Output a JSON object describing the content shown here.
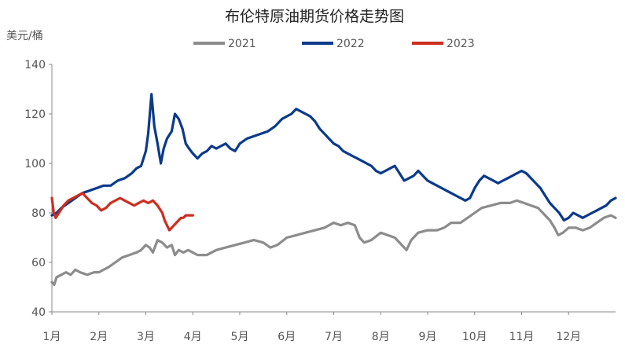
{
  "chart_data": {
    "type": "line",
    "title": "布伦特原油期货价格走势图",
    "ylabel": "美元/桶",
    "xlabel": "",
    "ylim": [
      40,
      140
    ],
    "y_ticks": [
      40,
      60,
      80,
      100,
      120,
      140
    ],
    "x_ticks": [
      "1月",
      "2月",
      "3月",
      "4月",
      "5月",
      "6月",
      "7月",
      "8月",
      "9月",
      "10月",
      "11月",
      "12月"
    ],
    "xlim_months": [
      1,
      13
    ],
    "grid": false,
    "legend_position": "top",
    "series": [
      {
        "name": "2021",
        "color": "#8c8c8c",
        "points": [
          [
            1.0,
            52
          ],
          [
            1.05,
            51
          ],
          [
            1.1,
            54
          ],
          [
            1.2,
            55
          ],
          [
            1.3,
            56
          ],
          [
            1.4,
            55
          ],
          [
            1.5,
            57
          ],
          [
            1.6,
            56
          ],
          [
            1.75,
            55
          ],
          [
            1.9,
            56
          ],
          [
            2.0,
            56
          ],
          [
            2.1,
            57
          ],
          [
            2.2,
            58
          ],
          [
            2.35,
            60
          ],
          [
            2.5,
            62
          ],
          [
            2.65,
            63
          ],
          [
            2.8,
            64
          ],
          [
            2.9,
            65
          ],
          [
            3.0,
            67
          ],
          [
            3.08,
            66
          ],
          [
            3.15,
            64
          ],
          [
            3.25,
            69
          ],
          [
            3.35,
            68
          ],
          [
            3.45,
            66
          ],
          [
            3.55,
            67
          ],
          [
            3.62,
            63
          ],
          [
            3.7,
            65
          ],
          [
            3.8,
            64
          ],
          [
            3.9,
            65
          ],
          [
            4.0,
            64
          ],
          [
            4.1,
            63
          ],
          [
            4.3,
            63
          ],
          [
            4.5,
            65
          ],
          [
            4.7,
            66
          ],
          [
            4.9,
            67
          ],
          [
            5.1,
            68
          ],
          [
            5.3,
            69
          ],
          [
            5.5,
            68
          ],
          [
            5.65,
            66
          ],
          [
            5.8,
            67
          ],
          [
            6.0,
            70
          ],
          [
            6.2,
            71
          ],
          [
            6.4,
            72
          ],
          [
            6.6,
            73
          ],
          [
            6.8,
            74
          ],
          [
            7.0,
            76
          ],
          [
            7.15,
            75
          ],
          [
            7.3,
            76
          ],
          [
            7.45,
            75
          ],
          [
            7.55,
            70
          ],
          [
            7.65,
            68
          ],
          [
            7.8,
            69
          ],
          [
            8.0,
            72
          ],
          [
            8.15,
            71
          ],
          [
            8.3,
            70
          ],
          [
            8.45,
            67
          ],
          [
            8.55,
            65
          ],
          [
            8.65,
            69
          ],
          [
            8.8,
            72
          ],
          [
            9.0,
            73
          ],
          [
            9.2,
            73
          ],
          [
            9.35,
            74
          ],
          [
            9.5,
            76
          ],
          [
            9.7,
            76
          ],
          [
            9.85,
            78
          ],
          [
            10.0,
            80
          ],
          [
            10.15,
            82
          ],
          [
            10.35,
            83
          ],
          [
            10.55,
            84
          ],
          [
            10.75,
            84
          ],
          [
            10.9,
            85
          ],
          [
            11.05,
            84
          ],
          [
            11.2,
            83
          ],
          [
            11.35,
            82
          ],
          [
            11.5,
            79
          ],
          [
            11.6,
            77
          ],
          [
            11.7,
            74
          ],
          [
            11.78,
            71
          ],
          [
            11.88,
            72
          ],
          [
            12.0,
            74
          ],
          [
            12.15,
            74
          ],
          [
            12.3,
            73
          ],
          [
            12.45,
            74
          ],
          [
            12.6,
            76
          ],
          [
            12.75,
            78
          ],
          [
            12.9,
            79
          ],
          [
            13.0,
            78
          ]
        ]
      },
      {
        "name": "2022",
        "color": "#0a3a8c",
        "points": [
          [
            1.0,
            79
          ],
          [
            1.1,
            80
          ],
          [
            1.2,
            82
          ],
          [
            1.35,
            84
          ],
          [
            1.5,
            86
          ],
          [
            1.65,
            88
          ],
          [
            1.8,
            89
          ],
          [
            1.95,
            90
          ],
          [
            2.1,
            91
          ],
          [
            2.25,
            91
          ],
          [
            2.4,
            93
          ],
          [
            2.55,
            94
          ],
          [
            2.7,
            96
          ],
          [
            2.8,
            98
          ],
          [
            2.9,
            99
          ],
          [
            3.0,
            105
          ],
          [
            3.05,
            112
          ],
          [
            3.12,
            128
          ],
          [
            3.18,
            115
          ],
          [
            3.25,
            108
          ],
          [
            3.32,
            100
          ],
          [
            3.38,
            106
          ],
          [
            3.45,
            110
          ],
          [
            3.55,
            113
          ],
          [
            3.62,
            120
          ],
          [
            3.7,
            118
          ],
          [
            3.78,
            114
          ],
          [
            3.85,
            108
          ],
          [
            3.92,
            106
          ],
          [
            4.0,
            104
          ],
          [
            4.1,
            102
          ],
          [
            4.2,
            104
          ],
          [
            4.3,
            105
          ],
          [
            4.4,
            107
          ],
          [
            4.5,
            106
          ],
          [
            4.6,
            107
          ],
          [
            4.7,
            108
          ],
          [
            4.8,
            106
          ],
          [
            4.9,
            105
          ],
          [
            5.0,
            108
          ],
          [
            5.15,
            110
          ],
          [
            5.3,
            111
          ],
          [
            5.45,
            112
          ],
          [
            5.6,
            113
          ],
          [
            5.75,
            115
          ],
          [
            5.9,
            118
          ],
          [
            6.0,
            119
          ],
          [
            6.1,
            120
          ],
          [
            6.2,
            122
          ],
          [
            6.3,
            121
          ],
          [
            6.4,
            120
          ],
          [
            6.5,
            119
          ],
          [
            6.6,
            117
          ],
          [
            6.7,
            114
          ],
          [
            6.8,
            112
          ],
          [
            6.9,
            110
          ],
          [
            7.0,
            108
          ],
          [
            7.1,
            107
          ],
          [
            7.2,
            105
          ],
          [
            7.3,
            104
          ],
          [
            7.4,
            103
          ],
          [
            7.5,
            102
          ],
          [
            7.6,
            101
          ],
          [
            7.7,
            100
          ],
          [
            7.8,
            99
          ],
          [
            7.9,
            97
          ],
          [
            8.0,
            96
          ],
          [
            8.1,
            97
          ],
          [
            8.2,
            98
          ],
          [
            8.3,
            99
          ],
          [
            8.4,
            96
          ],
          [
            8.5,
            93
          ],
          [
            8.6,
            94
          ],
          [
            8.7,
            95
          ],
          [
            8.8,
            97
          ],
          [
            8.9,
            95
          ],
          [
            9.0,
            93
          ],
          [
            9.1,
            92
          ],
          [
            9.2,
            91
          ],
          [
            9.3,
            90
          ],
          [
            9.4,
            89
          ],
          [
            9.5,
            88
          ],
          [
            9.6,
            87
          ],
          [
            9.7,
            86
          ],
          [
            9.8,
            85
          ],
          [
            9.9,
            86
          ],
          [
            10.0,
            90
          ],
          [
            10.1,
            93
          ],
          [
            10.2,
            95
          ],
          [
            10.3,
            94
          ],
          [
            10.4,
            93
          ],
          [
            10.5,
            92
          ],
          [
            10.6,
            93
          ],
          [
            10.7,
            94
          ],
          [
            10.8,
            95
          ],
          [
            10.9,
            96
          ],
          [
            11.0,
            97
          ],
          [
            11.1,
            96
          ],
          [
            11.2,
            94
          ],
          [
            11.3,
            92
          ],
          [
            11.4,
            90
          ],
          [
            11.5,
            87
          ],
          [
            11.6,
            84
          ],
          [
            11.7,
            82
          ],
          [
            11.8,
            80
          ],
          [
            11.9,
            77
          ],
          [
            12.0,
            78
          ],
          [
            12.1,
            80
          ],
          [
            12.2,
            79
          ],
          [
            12.3,
            78
          ],
          [
            12.4,
            79
          ],
          [
            12.5,
            80
          ],
          [
            12.6,
            81
          ],
          [
            12.7,
            82
          ],
          [
            12.8,
            83
          ],
          [
            12.9,
            85
          ],
          [
            13.0,
            86
          ]
        ]
      },
      {
        "name": "2023",
        "color": "#cc2e1f",
        "points": [
          [
            1.0,
            86
          ],
          [
            1.04,
            80
          ],
          [
            1.08,
            78
          ],
          [
            1.15,
            80
          ],
          [
            1.25,
            83
          ],
          [
            1.35,
            85
          ],
          [
            1.45,
            86
          ],
          [
            1.55,
            87
          ],
          [
            1.65,
            88
          ],
          [
            1.75,
            86
          ],
          [
            1.85,
            84
          ],
          [
            1.95,
            83
          ],
          [
            2.05,
            81
          ],
          [
            2.15,
            82
          ],
          [
            2.25,
            84
          ],
          [
            2.35,
            85
          ],
          [
            2.45,
            86
          ],
          [
            2.55,
            85
          ],
          [
            2.65,
            84
          ],
          [
            2.75,
            83
          ],
          [
            2.85,
            84
          ],
          [
            2.95,
            85
          ],
          [
            3.05,
            84
          ],
          [
            3.15,
            85
          ],
          [
            3.25,
            83
          ],
          [
            3.35,
            80
          ],
          [
            3.4,
            77
          ],
          [
            3.45,
            75
          ],
          [
            3.5,
            73
          ],
          [
            3.55,
            74
          ],
          [
            3.6,
            75
          ],
          [
            3.65,
            76
          ],
          [
            3.7,
            77
          ],
          [
            3.75,
            78
          ],
          [
            3.8,
            78
          ],
          [
            3.85,
            79
          ],
          [
            3.9,
            79
          ],
          [
            3.95,
            79
          ],
          [
            4.0,
            79
          ]
        ]
      }
    ]
  }
}
